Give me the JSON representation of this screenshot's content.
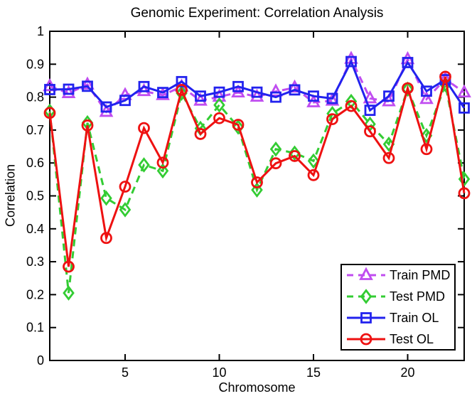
{
  "figure": {
    "title": "Genomic Experiment: Correlation Analysis",
    "xlabel": "Chromosome",
    "ylabel": "Correlation"
  },
  "chart_data": {
    "type": "line",
    "title": "Genomic Experiment: Correlation Analysis",
    "xlabel": "Chromosome",
    "ylabel": "Correlation",
    "xlim": [
      1,
      23
    ],
    "ylim": [
      0,
      1
    ],
    "grid": false,
    "legend_position": "lower-right-inside",
    "xticks": [
      5,
      10,
      15,
      20
    ],
    "xtick_labels": [
      "5",
      "10",
      "15",
      "20"
    ],
    "yticks": [
      0,
      0.1,
      0.2,
      0.3,
      0.4,
      0.5,
      0.6,
      0.7,
      0.8,
      0.9,
      1
    ],
    "ytick_labels": [
      "0",
      "0.1",
      "0.2",
      "0.3",
      "0.4",
      "0.5",
      "0.6",
      "0.7",
      "0.8",
      "0.9",
      "1"
    ],
    "x": [
      1,
      2,
      3,
      4,
      5,
      6,
      7,
      8,
      9,
      10,
      11,
      12,
      13,
      14,
      15,
      16,
      17,
      18,
      19,
      20,
      21,
      22,
      23
    ],
    "series": [
      {
        "name": "Train PMD",
        "color": "#c04df0",
        "line": "dashed",
        "marker": "triangle",
        "values": [
          0.833,
          0.812,
          0.838,
          0.755,
          0.806,
          0.818,
          0.806,
          0.832,
          0.789,
          0.801,
          0.814,
          0.801,
          0.817,
          0.829,
          0.784,
          0.789,
          0.916,
          0.796,
          0.787,
          0.915,
          0.794,
          0.855,
          0.814
        ]
      },
      {
        "name": "Test PMD",
        "color": "#33cc33",
        "line": "dashed",
        "marker": "diamond",
        "values": [
          0.757,
          0.205,
          0.722,
          0.493,
          0.458,
          0.594,
          0.576,
          0.812,
          0.705,
          0.776,
          0.709,
          0.518,
          0.642,
          0.63,
          0.606,
          0.75,
          0.787,
          0.718,
          0.657,
          0.824,
          0.683,
          0.838,
          0.551
        ]
      },
      {
        "name": "Train OL",
        "color": "#2222ee",
        "line": "solid",
        "marker": "square",
        "values": [
          0.823,
          0.824,
          0.833,
          0.77,
          0.79,
          0.832,
          0.814,
          0.847,
          0.803,
          0.815,
          0.832,
          0.815,
          0.8,
          0.822,
          0.803,
          0.796,
          0.908,
          0.76,
          0.803,
          0.905,
          0.818,
          0.853,
          0.767
        ]
      },
      {
        "name": "Test OL",
        "color": "#ee1111",
        "line": "solid",
        "marker": "circle",
        "values": [
          0.752,
          0.285,
          0.714,
          0.372,
          0.528,
          0.706,
          0.601,
          0.822,
          0.688,
          0.736,
          0.716,
          0.541,
          0.599,
          0.621,
          0.563,
          0.733,
          0.773,
          0.696,
          0.615,
          0.827,
          0.642,
          0.862,
          0.508
        ]
      }
    ]
  }
}
